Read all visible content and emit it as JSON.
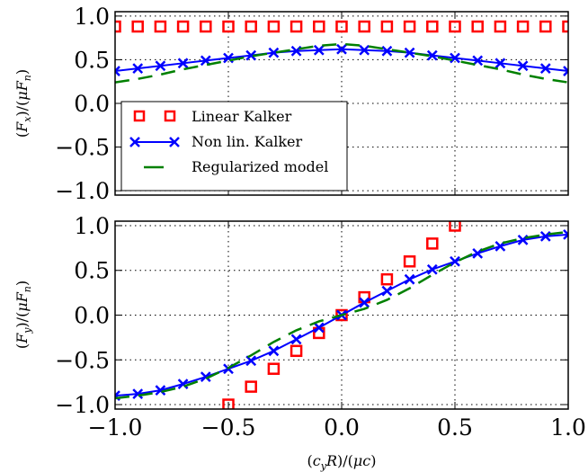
{
  "chart_data": [
    {
      "type": "line",
      "ylabel": "(F_x)/(μF_n)",
      "xlim": [
        -1.0,
        1.0
      ],
      "ylim": [
        -1.05,
        1.05
      ],
      "grid": true,
      "legend_position": "center-left",
      "xticks": [
        "−1.0",
        "−0.5",
        "0.0",
        "0.5",
        "1.0"
      ],
      "xtick_values": [
        -1.0,
        -0.5,
        0.0,
        0.5,
        1.0
      ],
      "yticks": [
        "−1.0",
        "−0.5",
        "0.0",
        "0.5",
        "1.0"
      ],
      "ytick_values": [
        -1.0,
        -0.5,
        0.0,
        0.5,
        1.0
      ],
      "legend": [
        "Linear Kalker",
        "Non lin. Kalker",
        "Regularized model"
      ],
      "series": [
        {
          "name": "Linear Kalker",
          "style": "squares",
          "color": "#ff0000",
          "x": [
            -1.0,
            -0.9,
            -0.8,
            -0.7,
            -0.6,
            -0.5,
            -0.4,
            -0.3,
            -0.2,
            -0.1,
            0.0,
            0.1,
            0.2,
            0.3,
            0.4,
            0.5,
            0.6,
            0.7,
            0.8,
            0.9,
            1.0
          ],
          "y": [
            0.88,
            0.88,
            0.88,
            0.88,
            0.88,
            0.88,
            0.88,
            0.88,
            0.88,
            0.88,
            0.88,
            0.88,
            0.88,
            0.88,
            0.88,
            0.88,
            0.88,
            0.88,
            0.88,
            0.88,
            0.88
          ]
        },
        {
          "name": "Non lin. Kalker",
          "style": "line-x",
          "color": "#0000ff",
          "x": [
            -1.0,
            -0.9,
            -0.8,
            -0.7,
            -0.6,
            -0.5,
            -0.4,
            -0.3,
            -0.2,
            -0.1,
            0.0,
            0.1,
            0.2,
            0.3,
            0.4,
            0.5,
            0.6,
            0.7,
            0.8,
            0.9,
            1.0
          ],
          "y": [
            0.37,
            0.4,
            0.43,
            0.46,
            0.49,
            0.52,
            0.55,
            0.58,
            0.6,
            0.61,
            0.62,
            0.61,
            0.6,
            0.58,
            0.55,
            0.52,
            0.49,
            0.46,
            0.43,
            0.4,
            0.37
          ]
        },
        {
          "name": "Regularized model",
          "style": "dashed",
          "color": "#008000",
          "x": [
            -1.0,
            -0.9,
            -0.8,
            -0.7,
            -0.6,
            -0.5,
            -0.4,
            -0.3,
            -0.2,
            -0.1,
            0.0,
            0.1,
            0.2,
            0.3,
            0.4,
            0.5,
            0.6,
            0.7,
            0.8,
            0.9,
            1.0
          ],
          "y": [
            0.24,
            0.28,
            0.33,
            0.39,
            0.44,
            0.49,
            0.54,
            0.58,
            0.62,
            0.66,
            0.68,
            0.66,
            0.62,
            0.58,
            0.54,
            0.49,
            0.44,
            0.39,
            0.33,
            0.28,
            0.24
          ]
        }
      ]
    },
    {
      "type": "line",
      "xlabel": "(c_yR)/(μc)",
      "ylabel": "(F_y)/(μF_n)",
      "xlim": [
        -1.0,
        1.0
      ],
      "ylim": [
        -1.05,
        1.05
      ],
      "grid": true,
      "xticks": [
        "−1.0",
        "−0.5",
        "0.0",
        "0.5",
        "1.0"
      ],
      "xtick_values": [
        -1.0,
        -0.5,
        0.0,
        0.5,
        1.0
      ],
      "yticks": [
        "−1.0",
        "−0.5",
        "0.0",
        "0.5",
        "1.0"
      ],
      "ytick_values": [
        -1.0,
        -0.5,
        0.0,
        0.5,
        1.0
      ],
      "series": [
        {
          "name": "Linear Kalker",
          "style": "squares",
          "color": "#ff0000",
          "x": [
            -0.5,
            -0.4,
            -0.3,
            -0.2,
            -0.1,
            0.0,
            0.1,
            0.2,
            0.3,
            0.4,
            0.5
          ],
          "y": [
            -1.0,
            -0.8,
            -0.6,
            -0.4,
            -0.2,
            0.0,
            0.2,
            0.4,
            0.6,
            0.8,
            1.0
          ]
        },
        {
          "name": "Non lin. Kalker",
          "style": "line-x",
          "color": "#0000ff",
          "x": [
            -1.0,
            -0.9,
            -0.8,
            -0.7,
            -0.6,
            -0.5,
            -0.4,
            -0.3,
            -0.2,
            -0.1,
            0.0,
            0.1,
            0.2,
            0.3,
            0.4,
            0.5,
            0.6,
            0.7,
            0.8,
            0.9,
            1.0
          ],
          "y": [
            -0.9,
            -0.88,
            -0.84,
            -0.77,
            -0.69,
            -0.6,
            -0.51,
            -0.4,
            -0.27,
            -0.14,
            0.0,
            0.14,
            0.27,
            0.4,
            0.51,
            0.6,
            0.69,
            0.77,
            0.84,
            0.88,
            0.9
          ]
        },
        {
          "name": "Regularized model",
          "style": "dashed",
          "color": "#008000",
          "x": [
            -1.0,
            -0.9,
            -0.8,
            -0.7,
            -0.6,
            -0.5,
            -0.4,
            -0.3,
            -0.2,
            -0.1,
            0.0,
            0.1,
            0.2,
            0.3,
            0.4,
            0.5,
            0.6,
            0.7,
            0.8,
            0.9,
            1.0
          ],
          "y": [
            -0.93,
            -0.9,
            -0.86,
            -0.8,
            -0.71,
            -0.59,
            -0.45,
            -0.3,
            -0.17,
            -0.07,
            0.0,
            0.07,
            0.17,
            0.3,
            0.45,
            0.59,
            0.71,
            0.8,
            0.86,
            0.9,
            0.93
          ]
        }
      ]
    }
  ]
}
